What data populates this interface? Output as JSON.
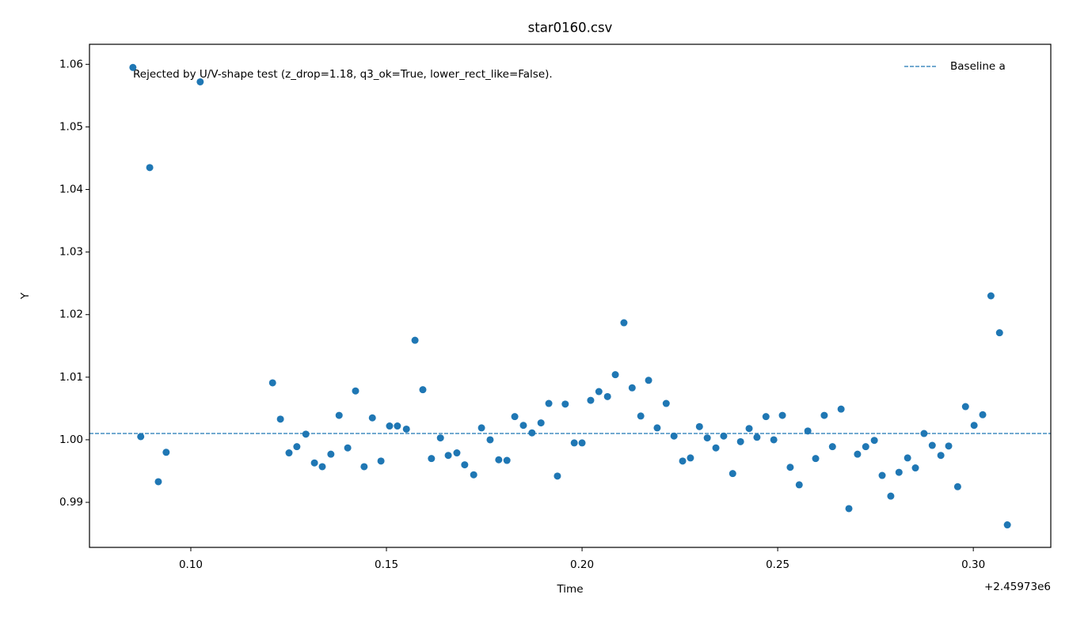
{
  "chart_data": {
    "type": "scatter",
    "title": "star0160.csv",
    "x_label": "Time",
    "y_label": "Y",
    "x_offset_label": "+2.45973e6",
    "annotation": "Rejected by U/V-shape test (z_drop=1.18, q3_ok=True, lower_rect_like=False).",
    "xlim": [
      0.0741,
      0.3198
    ],
    "ylim": [
      0.9828,
      1.0632
    ],
    "xticks": [
      {
        "value": 0.1,
        "label": "0.10"
      },
      {
        "value": 0.15,
        "label": "0.15"
      },
      {
        "value": 0.2,
        "label": "0.20"
      },
      {
        "value": 0.25,
        "label": "0.25"
      },
      {
        "value": 0.3,
        "label": "0.30"
      }
    ],
    "yticks": [
      {
        "value": 0.99,
        "label": "0.99"
      },
      {
        "value": 1.0,
        "label": "1.00"
      },
      {
        "value": 1.01,
        "label": "1.01"
      },
      {
        "value": 1.02,
        "label": "1.02"
      },
      {
        "value": 1.03,
        "label": "1.03"
      },
      {
        "value": 1.04,
        "label": "1.04"
      },
      {
        "value": 1.05,
        "label": "1.05"
      },
      {
        "value": 1.06,
        "label": "1.06"
      }
    ],
    "legend_position": "upper right",
    "hlines": [
      {
        "name": "Baseline a",
        "value": 1.001,
        "color": "#1f77b4"
      }
    ],
    "series": [
      {
        "color": "#1f77b4",
        "x": [
          0.0852,
          0.0872,
          0.0895,
          0.0917,
          0.0937,
          0.1024,
          0.1209,
          0.1229,
          0.1251,
          0.1271,
          0.1294,
          0.1316,
          0.1336,
          0.1358,
          0.1379,
          0.1401,
          0.1421,
          0.1443,
          0.1464,
          0.1486,
          0.1508,
          0.1528,
          0.1551,
          0.1573,
          0.1593,
          0.1615,
          0.1638,
          0.1658,
          0.168,
          0.17,
          0.1723,
          0.1743,
          0.1765,
          0.1787,
          0.1808,
          0.1828,
          0.185,
          0.1872,
          0.1895,
          0.1915,
          0.1937,
          0.1957,
          0.198,
          0.2,
          0.2022,
          0.2043,
          0.2065,
          0.2085,
          0.2107,
          0.2128,
          0.215,
          0.217,
          0.2192,
          0.2215,
          0.2235,
          0.2257,
          0.2277,
          0.23,
          0.232,
          0.2342,
          0.2362,
          0.2385,
          0.2405,
          0.2427,
          0.2447,
          0.247,
          0.249,
          0.2512,
          0.2532,
          0.2555,
          0.2577,
          0.2597,
          0.2619,
          0.264,
          0.2662,
          0.2682,
          0.2704,
          0.2725,
          0.2747,
          0.2767,
          0.2789,
          0.281,
          0.2832,
          0.2852,
          0.2874,
          0.2895,
          0.2917,
          0.2937,
          0.296,
          0.298,
          0.3002,
          0.3024,
          0.3045,
          0.3067,
          0.3087
        ],
        "values": [
          1.0595,
          1.0005,
          1.0435,
          0.9933,
          0.998,
          1.0572,
          1.0091,
          1.0033,
          0.9979,
          0.9989,
          1.0009,
          0.9963,
          0.9957,
          0.9977,
          1.0039,
          0.9987,
          1.0078,
          0.9957,
          1.0035,
          0.9966,
          1.0022,
          1.0022,
          1.0017,
          1.0159,
          1.008,
          0.997,
          1.0003,
          0.9975,
          0.9979,
          0.996,
          0.9944,
          1.0019,
          1.0,
          0.9968,
          0.9967,
          1.0037,
          1.0023,
          1.0011,
          1.0027,
          1.0058,
          0.9942,
          1.0057,
          0.9995,
          0.9995,
          1.0063,
          1.0077,
          1.0069,
          1.0104,
          1.0187,
          1.0083,
          1.0038,
          1.0095,
          1.0019,
          1.0058,
          1.0006,
          0.9966,
          0.9971,
          1.0021,
          1.0003,
          0.9987,
          1.0006,
          0.9946,
          0.9997,
          1.0018,
          1.0004,
          1.0037,
          1.0,
          1.0039,
          0.9956,
          0.9928,
          1.0014,
          0.997,
          1.0039,
          0.9989,
          1.0049,
          0.989,
          0.9977,
          0.9989,
          0.9999,
          0.9943,
          0.991,
          0.9948,
          0.9971,
          0.9955,
          1.001,
          0.9991,
          0.9975,
          0.999,
          0.9925,
          1.0053,
          1.0023,
          1.004,
          1.023,
          1.0171,
          0.9864
        ]
      }
    ]
  }
}
